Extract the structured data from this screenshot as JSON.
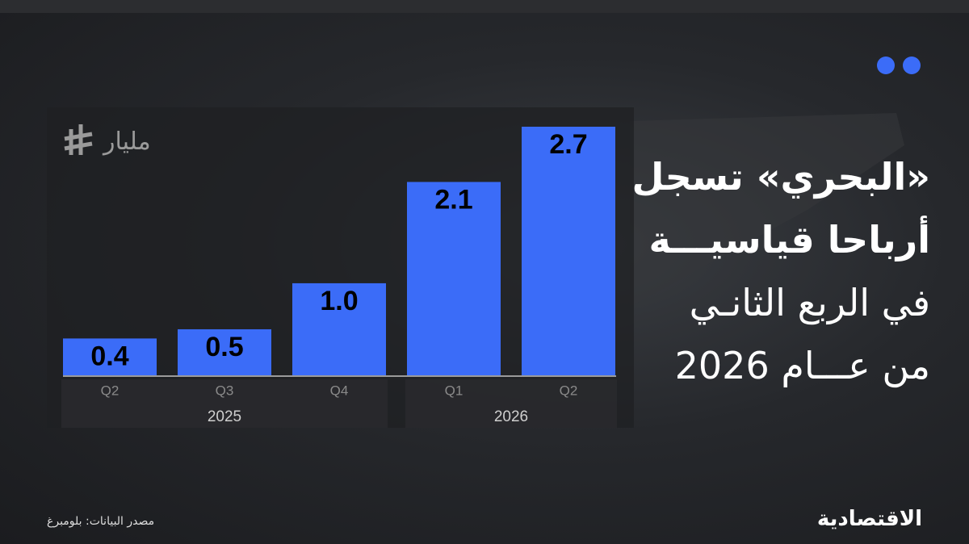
{
  "chart_data": {
    "type": "bar",
    "title_lines": [
      "«البحري» تسجل",
      "أرباحا قياسيـــة",
      "في الربع الثانـي",
      "من عـــام 2026"
    ],
    "unit": "مليار",
    "groups": [
      {
        "label": "2025",
        "categories": [
          "Q2",
          "Q3",
          "Q4"
        ]
      },
      {
        "label": "2026",
        "categories": [
          "Q1",
          "Q2"
        ]
      }
    ],
    "values": [
      0.4,
      0.5,
      1.0,
      2.1,
      2.7
    ],
    "value_labels": [
      "0.4",
      "0.5",
      "1.0",
      "2.1",
      "2.7"
    ],
    "color": "#3b6cf8",
    "source": "مصدر البيانات: بلومبرغ",
    "brand": "الاقتصادية"
  }
}
